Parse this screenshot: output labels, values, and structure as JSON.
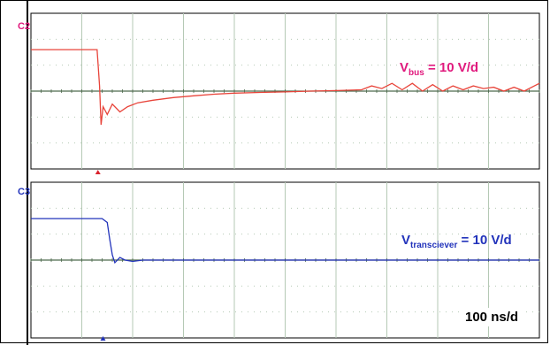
{
  "chart_data": [
    {
      "type": "line",
      "channel": "C2",
      "color": "#e8443a",
      "label_color": "#e0197d",
      "annotation": {
        "main": "V",
        "sub": "bus",
        "rest": " = 10 V/d"
      },
      "trigger_marker_color": "#d9232d",
      "x_divisions": 10,
      "y_divisions": 6,
      "series": [
        {
          "x": [
            0,
            1.3,
            1.35,
            1.38,
            1.42,
            1.5,
            1.6,
            1.75,
            1.9,
            2.1,
            2.4,
            2.8,
            3.2,
            3.6,
            4.0,
            4.5,
            5.0,
            5.5,
            6.0,
            6.5,
            6.7,
            6.9,
            7.1,
            7.3,
            7.5,
            7.7,
            7.9,
            8.1,
            8.3,
            8.5,
            8.7,
            8.9,
            9.1,
            9.3,
            9.5,
            9.7,
            10.0
          ],
          "y": [
            1.6,
            1.6,
            0.2,
            -1.3,
            -0.6,
            -0.9,
            -0.5,
            -0.8,
            -0.6,
            -0.45,
            -0.35,
            -0.25,
            -0.18,
            -0.12,
            -0.08,
            -0.05,
            -0.03,
            0.0,
            0.02,
            0.05,
            0.2,
            0.1,
            0.3,
            0.05,
            0.3,
            0.0,
            0.25,
            0.0,
            0.2,
            0.05,
            0.2,
            0.1,
            0.15,
            0.0,
            0.15,
            0.0,
            0.3
          ]
        }
      ]
    },
    {
      "type": "line",
      "channel": "C3",
      "color": "#2233bb",
      "label_color": "#2233bb",
      "annotation": {
        "main": "V",
        "sub": "transciever",
        "rest": " = 10 V/d"
      },
      "trigger_marker_color": "#2233bb",
      "x_divisions": 10,
      "y_divisions": 6,
      "series": [
        {
          "x": [
            0,
            1.4,
            1.5,
            1.55,
            1.6,
            1.65,
            1.75,
            1.85,
            2.0,
            2.2,
            3.0,
            5.0,
            7.0,
            10.0
          ],
          "y": [
            1.6,
            1.6,
            1.45,
            0.8,
            0.2,
            -0.1,
            0.1,
            0.0,
            -0.05,
            0.0,
            0.0,
            0.0,
            0.0,
            0.0
          ]
        }
      ]
    }
  ],
  "timebase": "100 ns/d"
}
